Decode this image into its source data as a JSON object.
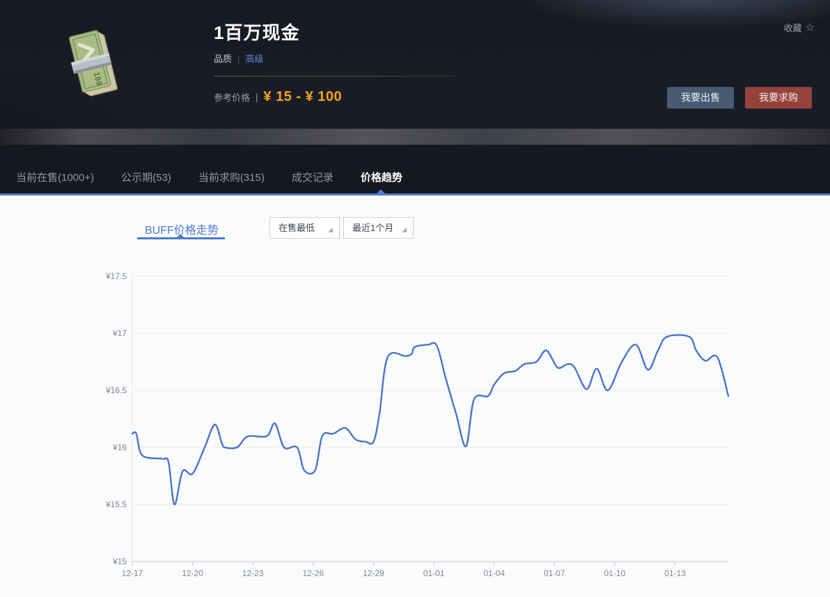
{
  "header": {
    "title": "1百万现金",
    "quality_label": "品质",
    "separator": "|",
    "quality_value": "高级",
    "ref_price_label": "参考价格",
    "ref_price_value": "¥ 15 - ¥ 100",
    "favorite_label": "收藏",
    "favorite_icon": "star-outline",
    "sell_button": "我要出售",
    "buy_button": "我要求购",
    "item_icon": "cash-stack"
  },
  "tabs": [
    {
      "label": "当前在售(1000+)",
      "active": false
    },
    {
      "label": "公示期(53)",
      "active": false
    },
    {
      "label": "当前求购(315)",
      "active": false
    },
    {
      "label": "成交记录",
      "active": false
    },
    {
      "label": "价格趋势",
      "active": true
    }
  ],
  "trend": {
    "subtab": "BUFF价格走势",
    "filters": [
      {
        "value": "在售最低"
      },
      {
        "value": "最近1个月"
      }
    ]
  },
  "colors": {
    "accent_blue": "#4d7ccd",
    "line_blue": "#4a74c9",
    "price_orange": "#f7a31a",
    "quality_blue": "#5b85d6",
    "sell_button_bg": "#475b73",
    "buy_button_bg": "#96423b"
  },
  "chart_data": {
    "type": "line",
    "title": "BUFF价格走势",
    "series_name": "在售最低",
    "currency": "¥",
    "grid": true,
    "ylim": [
      15,
      17.5
    ],
    "y_ticks": [
      "¥17.5",
      "¥17",
      "¥16.5",
      "¥16",
      "¥15.5",
      "¥15"
    ],
    "y_values": [
      17.5,
      17,
      16.5,
      16,
      15.5,
      15
    ],
    "x_ticks": [
      "12-17",
      "12-20",
      "12-23",
      "12-26",
      "12-29",
      "01-01",
      "01-04",
      "01-07",
      "01-10",
      "01-13"
    ],
    "x_tick_days": [
      0,
      3,
      6,
      9,
      12,
      15,
      18,
      21,
      24,
      27
    ],
    "x_range_days": [
      0,
      29.65
    ],
    "points": [
      [
        0,
        16.12
      ],
      [
        0.2,
        16.12
      ],
      [
        0.5,
        15.93
      ],
      [
        1.5,
        15.9
      ],
      [
        1.8,
        15.87
      ],
      [
        2.1,
        15.5
      ],
      [
        2.5,
        15.79
      ],
      [
        3,
        15.77
      ],
      [
        3.6,
        16
      ],
      [
        4.1,
        16.2
      ],
      [
        4.45,
        16.04
      ],
      [
        4.6,
        16
      ],
      [
        5.2,
        16
      ],
      [
        5.6,
        16.08
      ],
      [
        5.9,
        16.1
      ],
      [
        6.7,
        16.1
      ],
      [
        7.1,
        16.21
      ],
      [
        7.55,
        16
      ],
      [
        8.2,
        16
      ],
      [
        8.55,
        15.8
      ],
      [
        9.1,
        15.8
      ],
      [
        9.45,
        16.1
      ],
      [
        10,
        16.12
      ],
      [
        10.6,
        16.17
      ],
      [
        11.1,
        16.07
      ],
      [
        11.6,
        16.05
      ],
      [
        12,
        16.05
      ],
      [
        12.3,
        16.3
      ],
      [
        12.7,
        16.79
      ],
      [
        13.6,
        16.8
      ],
      [
        13.9,
        16.82
      ],
      [
        14.05,
        16.88
      ],
      [
        14.7,
        16.9
      ],
      [
        15.15,
        16.89
      ],
      [
        15.6,
        16.6
      ],
      [
        16.1,
        16.3
      ],
      [
        16.6,
        16.01
      ],
      [
        17,
        16.42
      ],
      [
        17.7,
        16.45
      ],
      [
        18,
        16.55
      ],
      [
        18.5,
        16.65
      ],
      [
        19.05,
        16.67
      ],
      [
        19.5,
        16.73
      ],
      [
        20.1,
        16.75
      ],
      [
        20.6,
        16.85
      ],
      [
        21.15,
        16.7
      ],
      [
        21.65,
        16.73
      ],
      [
        22,
        16.7
      ],
      [
        22.6,
        16.51
      ],
      [
        23.1,
        16.69
      ],
      [
        23.65,
        16.5
      ],
      [
        24.35,
        16.75
      ],
      [
        25.05,
        16.9
      ],
      [
        25.65,
        16.68
      ],
      [
        26.15,
        16.85
      ],
      [
        26.6,
        16.97
      ],
      [
        27.7,
        16.97
      ],
      [
        28.05,
        16.85
      ],
      [
        28.5,
        16.76
      ],
      [
        29.1,
        16.79
      ],
      [
        29.65,
        16.45
      ]
    ]
  }
}
